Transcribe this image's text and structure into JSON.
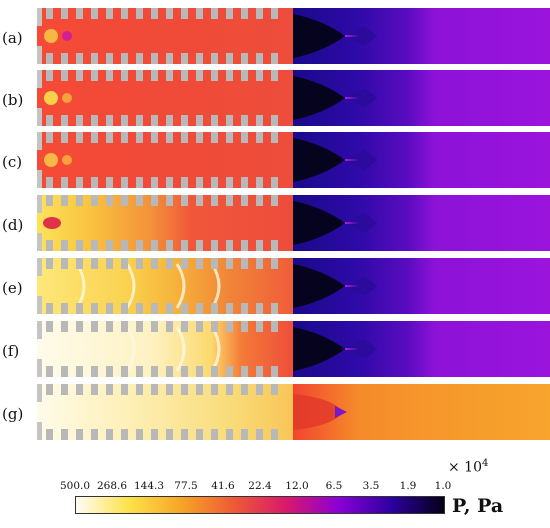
{
  "panels": [
    {
      "label": "(a)",
      "shade": 0
    },
    {
      "label": "(b)",
      "shade": 0.05
    },
    {
      "label": "(c)",
      "shade": 0.08
    },
    {
      "label": "(d)",
      "shade": 0.35
    },
    {
      "label": "(e)",
      "shade": 0.55
    },
    {
      "label": "(f)",
      "shade": 0.8
    },
    {
      "label": "(g)",
      "shade": 1
    }
  ],
  "scale_multiplier": "× 10",
  "scale_exponent": "4",
  "colorbar": {
    "ticks": [
      "500.0",
      "268.6",
      "144.3",
      "77.5",
      "41.6",
      "22.4",
      "12.0",
      "6.5",
      "3.5",
      "1.9",
      "1.0"
    ],
    "unit_label": "P, Pa",
    "colors": [
      "#fffdf6",
      "#fde24a",
      "#f7a526",
      "#ee5a35",
      "#d8196b",
      "#8a00d6",
      "#2c00a0",
      "#050015"
    ]
  }
}
